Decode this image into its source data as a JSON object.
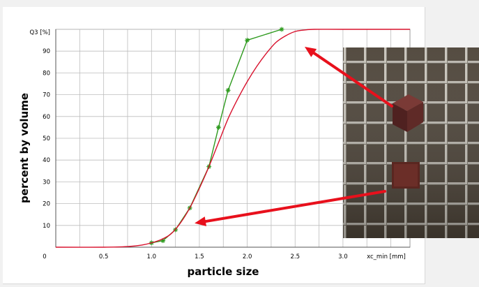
{
  "chart_data": {
    "type": "line",
    "xlabel": "particle size",
    "ylabel": "percent by volume",
    "y_axis_caption": "Q3 [%]",
    "x_axis_caption": "xc_min [mm]",
    "xlim": [
      0,
      3.7
    ],
    "ylim": [
      0,
      100
    ],
    "x_ticks": [
      {
        "value": 0,
        "label": "0"
      },
      {
        "value": 0.5,
        "label": "0.5"
      },
      {
        "value": 1.0,
        "label": "1.0"
      },
      {
        "value": 1.5,
        "label": "1.5"
      },
      {
        "value": 2.0,
        "label": "2.0"
      },
      {
        "value": 2.5,
        "label": "2.5"
      },
      {
        "value": 3.0,
        "label": "3.0"
      }
    ],
    "y_ticks": [
      {
        "value": 10,
        "label": "10"
      },
      {
        "value": 20,
        "label": "20"
      },
      {
        "value": 30,
        "label": "30"
      },
      {
        "value": 40,
        "label": "40"
      },
      {
        "value": 50,
        "label": "50"
      },
      {
        "value": 60,
        "label": "60"
      },
      {
        "value": 70,
        "label": "70"
      },
      {
        "value": 80,
        "label": "80"
      },
      {
        "value": 90,
        "label": "90"
      }
    ],
    "grid": true,
    "series": [
      {
        "color": "#2e9a1e",
        "marker": "star",
        "x": [
          1.0,
          1.12,
          1.25,
          1.4,
          1.6,
          1.7,
          1.8,
          2.0,
          2.36
        ],
        "y": [
          2,
          3,
          8,
          18,
          37,
          55,
          72,
          95,
          100
        ]
      },
      {
        "color": "#d8102c",
        "marker": "none",
        "x": [
          0,
          0.5,
          0.75,
          0.9,
          1.0,
          1.1,
          1.2,
          1.3,
          1.4,
          1.5,
          1.6,
          1.7,
          1.8,
          1.9,
          2.0,
          2.1,
          2.2,
          2.3,
          2.4,
          2.5,
          2.6,
          2.7,
          3.0,
          3.7
        ],
        "y": [
          0,
          0,
          0.3,
          1,
          2,
          3.5,
          6,
          11,
          18,
          27,
          37,
          48,
          59,
          68,
          76,
          83,
          89,
          94,
          97,
          99,
          99.7,
          100,
          100,
          100
        ]
      }
    ],
    "annotations": [
      {
        "type": "arrow",
        "from_photo": "cube",
        "to": {
          "x": 2.6,
          "y": 92
        },
        "color": "#e8101c"
      },
      {
        "type": "arrow",
        "from_photo": "square",
        "to": {
          "x": 1.45,
          "y": 11
        },
        "color": "#e8101c"
      }
    ]
  }
}
